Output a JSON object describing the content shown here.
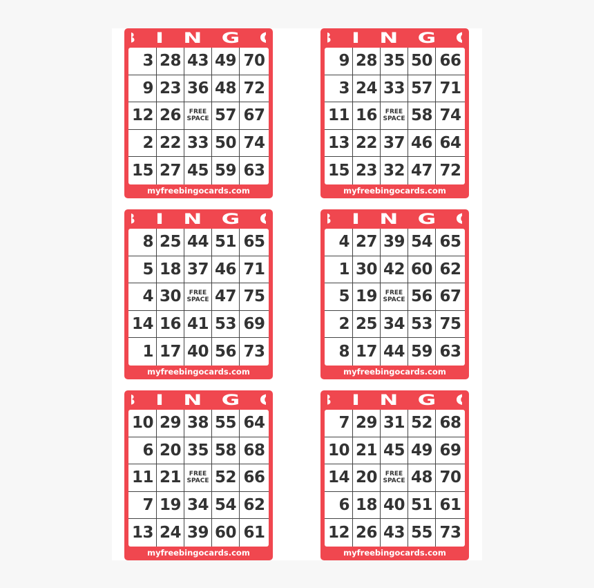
{
  "accent_color": "#f0474f",
  "cards": [
    {
      "title": [
        "B",
        "I",
        "N",
        "G",
        "O"
      ],
      "free_label": [
        "FREE",
        "SPACE"
      ],
      "footer": "myfreebingocards.com",
      "rows": [
        [
          "3",
          "28",
          "43",
          "49",
          "70"
        ],
        [
          "9",
          "23",
          "36",
          "48",
          "72"
        ],
        [
          "12",
          "26",
          "FREE",
          "57",
          "67"
        ],
        [
          "2",
          "22",
          "33",
          "50",
          "74"
        ],
        [
          "15",
          "27",
          "45",
          "59",
          "63"
        ]
      ]
    },
    {
      "title": [
        "B",
        "I",
        "N",
        "G",
        "O"
      ],
      "free_label": [
        "FREE",
        "SPACE"
      ],
      "footer": "myfreebingocards.com",
      "rows": [
        [
          "9",
          "28",
          "35",
          "50",
          "66"
        ],
        [
          "3",
          "24",
          "33",
          "57",
          "71"
        ],
        [
          "11",
          "16",
          "FREE",
          "58",
          "74"
        ],
        [
          "13",
          "22",
          "37",
          "46",
          "64"
        ],
        [
          "15",
          "23",
          "32",
          "47",
          "72"
        ]
      ]
    },
    {
      "title": [
        "B",
        "I",
        "N",
        "G",
        "O"
      ],
      "free_label": [
        "FREE",
        "SPACE"
      ],
      "footer": "myfreebingocards.com",
      "rows": [
        [
          "8",
          "25",
          "44",
          "51",
          "65"
        ],
        [
          "5",
          "18",
          "37",
          "46",
          "71"
        ],
        [
          "4",
          "30",
          "FREE",
          "47",
          "75"
        ],
        [
          "14",
          "16",
          "41",
          "53",
          "69"
        ],
        [
          "1",
          "17",
          "40",
          "56",
          "73"
        ]
      ]
    },
    {
      "title": [
        "B",
        "I",
        "N",
        "G",
        "O"
      ],
      "free_label": [
        "FREE",
        "SPACE"
      ],
      "footer": "myfreebingocards.com",
      "rows": [
        [
          "4",
          "27",
          "39",
          "54",
          "65"
        ],
        [
          "1",
          "30",
          "42",
          "60",
          "62"
        ],
        [
          "5",
          "19",
          "FREE",
          "56",
          "67"
        ],
        [
          "2",
          "25",
          "34",
          "53",
          "75"
        ],
        [
          "8",
          "17",
          "44",
          "59",
          "63"
        ]
      ]
    },
    {
      "title": [
        "B",
        "I",
        "N",
        "G",
        "O"
      ],
      "free_label": [
        "FREE",
        "SPACE"
      ],
      "footer": "myfreebingocards.com",
      "rows": [
        [
          "10",
          "29",
          "38",
          "55",
          "64"
        ],
        [
          "6",
          "20",
          "35",
          "58",
          "68"
        ],
        [
          "11",
          "21",
          "FREE",
          "52",
          "66"
        ],
        [
          "7",
          "19",
          "34",
          "54",
          "62"
        ],
        [
          "13",
          "24",
          "39",
          "60",
          "61"
        ]
      ]
    },
    {
      "title": [
        "B",
        "I",
        "N",
        "G",
        "O"
      ],
      "free_label": [
        "FREE",
        "SPACE"
      ],
      "footer": "myfreebingocards.com",
      "rows": [
        [
          "7",
          "29",
          "31",
          "52",
          "68"
        ],
        [
          "10",
          "21",
          "45",
          "49",
          "69"
        ],
        [
          "14",
          "20",
          "FREE",
          "48",
          "70"
        ],
        [
          "6",
          "18",
          "40",
          "51",
          "61"
        ],
        [
          "12",
          "26",
          "43",
          "55",
          "73"
        ]
      ]
    }
  ]
}
